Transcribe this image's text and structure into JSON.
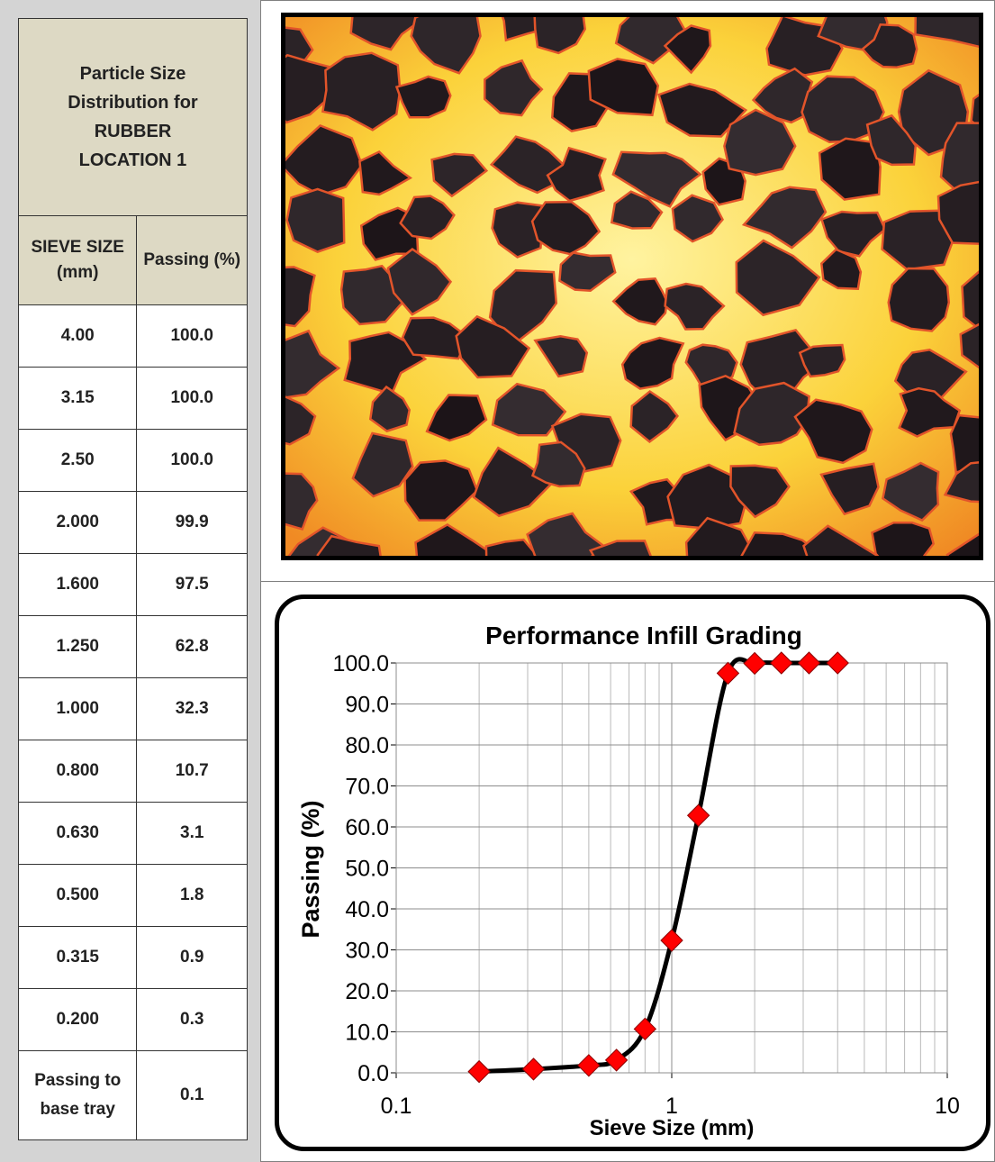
{
  "table": {
    "title": "Particle Size Distribution for RUBBER LOCATION 1",
    "headers": [
      "SIEVE SIZE (mm)",
      "Passing (%)"
    ],
    "rows": [
      [
        "4.00",
        "100.0"
      ],
      [
        "3.15",
        "100.0"
      ],
      [
        "2.50",
        "100.0"
      ],
      [
        "2.000",
        "99.9"
      ],
      [
        "1.600",
        "97.5"
      ],
      [
        "1.250",
        "62.8"
      ],
      [
        "1.000",
        "32.3"
      ],
      [
        "0.800",
        "10.7"
      ],
      [
        "0.630",
        "3.1"
      ],
      [
        "0.500",
        "1.8"
      ],
      [
        "0.315",
        "0.9"
      ],
      [
        "0.200",
        "0.3"
      ],
      [
        "Passing to base tray",
        "0.1"
      ]
    ]
  },
  "chart_data": {
    "type": "line",
    "title": "Performance Infill Grading",
    "xlabel": "Sieve Size (mm)",
    "ylabel": "Passing (%)",
    "x": [
      4,
      3.15,
      2.5,
      2,
      1.6,
      1.25,
      1,
      0.8,
      0.63,
      0.5,
      0.315,
      0.2
    ],
    "series": [
      {
        "color": "#000000",
        "marker_color": "#ff0000",
        "values": [
          100.0,
          100.0,
          100.0,
          99.9,
          97.5,
          62.8,
          32.3,
          10.7,
          3.1,
          1.8,
          0.9,
          0.3
        ]
      }
    ],
    "xlim": [
      0.1,
      10
    ],
    "xticks": [
      0.1,
      1,
      10
    ],
    "xscale": "log",
    "ylim": [
      0,
      100
    ],
    "yticks": [
      {
        "value": 0,
        "label": "0.0"
      },
      {
        "value": 10,
        "label": "10.0"
      },
      {
        "value": 20,
        "label": "20.0"
      },
      {
        "value": 30,
        "label": "30.0"
      },
      {
        "value": 40,
        "label": "40.0"
      },
      {
        "value": 50,
        "label": "50.0"
      },
      {
        "value": 60,
        "label": "60.0"
      },
      {
        "value": 70,
        "label": "70.0"
      },
      {
        "value": 80,
        "label": "80.0"
      },
      {
        "value": 90,
        "label": "90.0"
      },
      {
        "value": 100,
        "label": "100.0"
      }
    ],
    "grid": true,
    "minor_grid": true
  }
}
